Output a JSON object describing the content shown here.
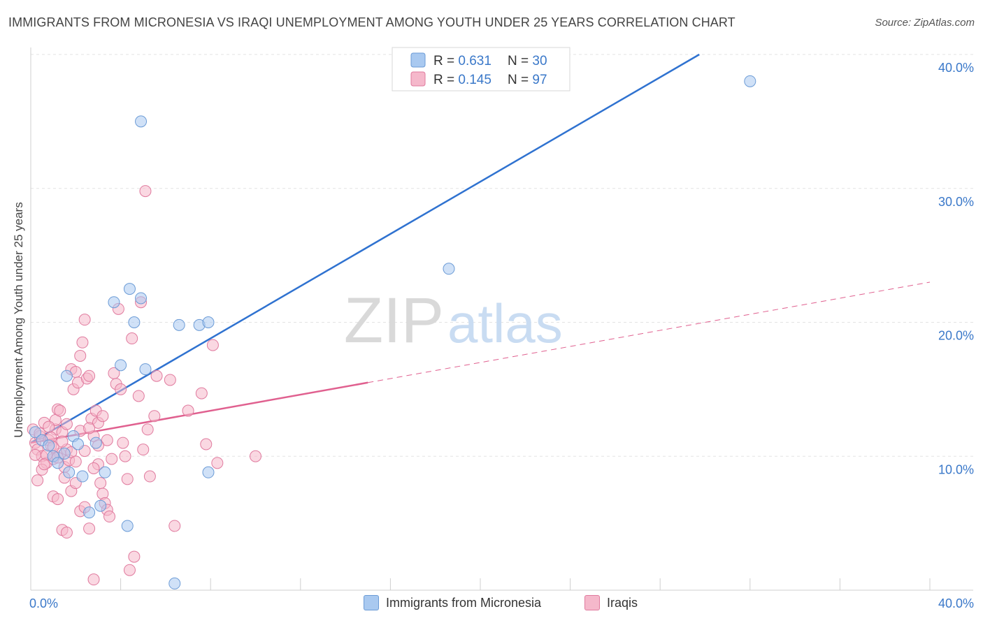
{
  "title": "IMMIGRANTS FROM MICRONESIA VS IRAQI UNEMPLOYMENT AMONG YOUTH UNDER 25 YEARS CORRELATION CHART",
  "source": "Source: ZipAtlas.com",
  "watermark": {
    "zip": "ZIP",
    "atlas": "atlas"
  },
  "colors": {
    "blue_fill": "#a9c9f0",
    "blue_stroke": "#6b9bd6",
    "blue_line": "#2f72d0",
    "pink_fill": "#f5b8cb",
    "pink_stroke": "#e07a9e",
    "pink_line": "#e0608f",
    "axis_text": "#3a78c9",
    "grid": "#e3e3e3"
  },
  "legend": {
    "rows": [
      {
        "r_label": "R = ",
        "r_value": "0.631",
        "n_label": "N = ",
        "n_value": "30"
      },
      {
        "r_label": "R = ",
        "r_value": "0.145",
        "n_label": "N = ",
        "n_value": "97"
      }
    ]
  },
  "chart_data": {
    "type": "scatter",
    "title": "IMMIGRANTS FROM MICRONESIA VS IRAQI UNEMPLOYMENT AMONG YOUTH UNDER 25 YEARS CORRELATION CHART",
    "xlabel": "",
    "ylabel": "Unemployment Among Youth under 25 years",
    "xlim": [
      0,
      40
    ],
    "ylim": [
      0,
      40
    ],
    "x_tick_labels": [
      "0.0%",
      "40.0%"
    ],
    "y_ticks": [
      10,
      20,
      30,
      40
    ],
    "y_tick_labels": [
      "10.0%",
      "20.0%",
      "30.0%",
      "40.0%"
    ],
    "grid": true,
    "legend_position": "top-center",
    "series": [
      {
        "name": "Immigrants from Micronesia",
        "color": "blue",
        "R": 0.631,
        "N": 30,
        "trend": {
          "x0": 0,
          "y0": 11.0,
          "x1": 40,
          "y1": 50.0,
          "solid_until": 40
        },
        "points": [
          [
            0.2,
            11.8
          ],
          [
            0.5,
            11.2
          ],
          [
            0.8,
            10.8
          ],
          [
            1.0,
            10.0
          ],
          [
            1.2,
            9.5
          ],
          [
            1.5,
            10.2
          ],
          [
            1.7,
            8.8
          ],
          [
            1.9,
            11.5
          ],
          [
            2.1,
            10.9
          ],
          [
            2.3,
            8.5
          ],
          [
            2.6,
            5.8
          ],
          [
            2.9,
            11.0
          ],
          [
            3.1,
            6.3
          ],
          [
            3.3,
            8.8
          ],
          [
            3.7,
            21.5
          ],
          [
            4.0,
            16.8
          ],
          [
            4.3,
            4.8
          ],
          [
            4.4,
            22.5
          ],
          [
            4.6,
            20.0
          ],
          [
            4.9,
            21.8
          ],
          [
            5.1,
            16.5
          ],
          [
            4.9,
            35.0
          ],
          [
            6.4,
            0.5
          ],
          [
            6.6,
            19.8
          ],
          [
            7.5,
            19.8
          ],
          [
            7.9,
            20.0
          ],
          [
            7.9,
            8.8
          ],
          [
            18.6,
            24.0
          ],
          [
            32.0,
            38.0
          ],
          [
            1.6,
            16.0
          ]
        ]
      },
      {
        "name": "Iraqis",
        "color": "pink",
        "R": 0.145,
        "N": 97,
        "trend": {
          "x0": 0,
          "y0": 11.0,
          "x1": 40,
          "y1": 23.0,
          "solid_until": 15.0
        },
        "points": [
          [
            0.1,
            12.0
          ],
          [
            0.2,
            11.0
          ],
          [
            0.3,
            10.5
          ],
          [
            0.4,
            11.5
          ],
          [
            0.5,
            10.0
          ],
          [
            0.6,
            12.5
          ],
          [
            0.7,
            9.5
          ],
          [
            0.8,
            11.2
          ],
          [
            0.9,
            10.8
          ],
          [
            1.0,
            9.8
          ],
          [
            1.1,
            12.0
          ],
          [
            1.2,
            13.5
          ],
          [
            1.3,
            10.2
          ],
          [
            1.4,
            11.8
          ],
          [
            1.5,
            9.2
          ],
          [
            1.6,
            10.5
          ],
          [
            0.3,
            8.2
          ],
          [
            0.5,
            9.0
          ],
          [
            0.7,
            10.1
          ],
          [
            0.9,
            11.4
          ],
          [
            1.1,
            12.7
          ],
          [
            1.3,
            13.4
          ],
          [
            1.5,
            8.4
          ],
          [
            1.7,
            9.7
          ],
          [
            1.8,
            16.5
          ],
          [
            1.9,
            15.0
          ],
          [
            2.0,
            16.3
          ],
          [
            2.1,
            15.5
          ],
          [
            2.2,
            17.5
          ],
          [
            2.3,
            18.5
          ],
          [
            2.4,
            20.2
          ],
          [
            2.5,
            15.8
          ],
          [
            2.6,
            16.0
          ],
          [
            2.7,
            12.8
          ],
          [
            2.8,
            11.5
          ],
          [
            2.9,
            13.4
          ],
          [
            3.0,
            9.4
          ],
          [
            3.1,
            8.0
          ],
          [
            3.2,
            7.2
          ],
          [
            3.3,
            6.5
          ],
          [
            3.4,
            6.0
          ],
          [
            3.5,
            5.5
          ],
          [
            3.6,
            9.8
          ],
          [
            3.7,
            16.2
          ],
          [
            3.8,
            15.4
          ],
          [
            3.9,
            21.0
          ],
          [
            4.0,
            15.0
          ],
          [
            4.1,
            11.0
          ],
          [
            4.2,
            10.0
          ],
          [
            4.3,
            8.3
          ],
          [
            4.4,
            1.5
          ],
          [
            4.5,
            18.8
          ],
          [
            4.6,
            2.5
          ],
          [
            4.8,
            14.5
          ],
          [
            4.9,
            21.5
          ],
          [
            5.0,
            10.5
          ],
          [
            5.1,
            29.8
          ],
          [
            5.2,
            12.0
          ],
          [
            5.3,
            8.5
          ],
          [
            5.5,
            13.0
          ],
          [
            5.6,
            16.0
          ],
          [
            6.2,
            15.7
          ],
          [
            6.4,
            4.8
          ],
          [
            7.0,
            13.4
          ],
          [
            7.6,
            14.7
          ],
          [
            7.8,
            10.9
          ],
          [
            8.1,
            18.3
          ],
          [
            8.3,
            9.5
          ],
          [
            10.0,
            10.0
          ],
          [
            1.0,
            7.0
          ],
          [
            1.2,
            6.8
          ],
          [
            1.4,
            4.5
          ],
          [
            1.6,
            4.3
          ],
          [
            1.8,
            7.4
          ],
          [
            2.0,
            8.0
          ],
          [
            2.2,
            5.9
          ],
          [
            2.4,
            6.2
          ],
          [
            2.6,
            4.6
          ],
          [
            2.8,
            0.8
          ],
          [
            3.0,
            12.5
          ],
          [
            3.2,
            13.0
          ],
          [
            3.4,
            11.2
          ],
          [
            0.2,
            10.1
          ],
          [
            0.4,
            11.7
          ],
          [
            0.6,
            9.4
          ],
          [
            0.8,
            12.2
          ],
          [
            1.0,
            10.7
          ],
          [
            1.2,
            9.9
          ],
          [
            1.4,
            11.1
          ],
          [
            1.6,
            12.4
          ],
          [
            1.8,
            10.3
          ],
          [
            2.0,
            9.6
          ],
          [
            2.2,
            11.9
          ],
          [
            2.4,
            10.4
          ],
          [
            2.6,
            12.1
          ],
          [
            2.8,
            9.1
          ],
          [
            3.0,
            10.8
          ]
        ]
      }
    ]
  },
  "bottom_legend": [
    {
      "label": "Immigrants from Micronesia"
    },
    {
      "label": "Iraqis"
    }
  ]
}
